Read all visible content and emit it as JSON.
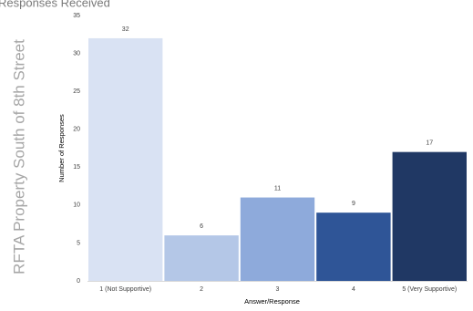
{
  "header_text": "Responses Received",
  "side_title": "RFTA Property South of 8th Street",
  "chart_data": {
    "type": "bar",
    "categories": [
      "1 (Not Supportive)",
      "2",
      "3",
      "4",
      "5 (Very Supportive)"
    ],
    "values": [
      32,
      6,
      11,
      9,
      17
    ],
    "colors": [
      "#d9e2f3",
      "#b4c7e7",
      "#8eaadb",
      "#2f5597",
      "#203864"
    ],
    "title": "",
    "xlabel": "Answer/Response",
    "ylabel": "Number of Responses",
    "ylim": [
      0,
      35
    ],
    "yticks": [
      0,
      5,
      10,
      15,
      20,
      25,
      30,
      35
    ],
    "grid": false,
    "legend": "none",
    "data_labels": true
  }
}
